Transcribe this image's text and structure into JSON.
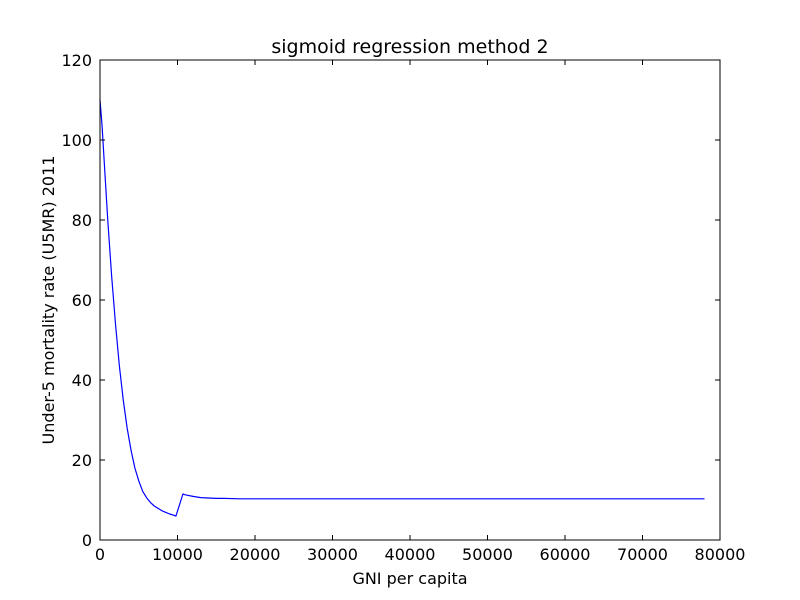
{
  "chart_data": {
    "type": "line",
    "title": "sigmoid regression method 2",
    "xlabel": "GNI per capita",
    "ylabel": "Under-5 mortality rate (U5MR) 2011",
    "xlim": [
      0,
      80000
    ],
    "ylim": [
      0,
      120
    ],
    "xticks": [
      0,
      10000,
      20000,
      30000,
      40000,
      50000,
      60000,
      70000,
      80000
    ],
    "yticks": [
      0,
      20,
      40,
      60,
      80,
      100,
      120
    ],
    "grid": false,
    "line_color": "#0000ff",
    "series": [
      {
        "x": [
          0,
          250,
          500,
          750,
          1000,
          1500,
          2000,
          2500,
          3000,
          3500,
          4000,
          4500,
          5000,
          5500,
          6000,
          6500,
          7000,
          7500,
          8000,
          8500,
          9000,
          9500,
          9800,
          10700,
          11000,
          12000,
          13000,
          14000,
          15000,
          16000,
          18000,
          20000,
          25000,
          30000,
          40000,
          50000,
          60000,
          70000,
          78000
        ],
        "y": [
          110,
          104,
          96,
          88,
          80,
          66,
          54,
          43.5,
          35,
          28,
          22.5,
          18,
          14.8,
          12.2,
          10.6,
          9.4,
          8.5,
          7.9,
          7.3,
          6.9,
          6.5,
          6.2,
          6.0,
          11.5,
          11.3,
          10.9,
          10.6,
          10.5,
          10.4,
          10.4,
          10.3,
          10.3,
          10.3,
          10.3,
          10.3,
          10.3,
          10.3,
          10.3,
          10.3
        ]
      }
    ]
  }
}
